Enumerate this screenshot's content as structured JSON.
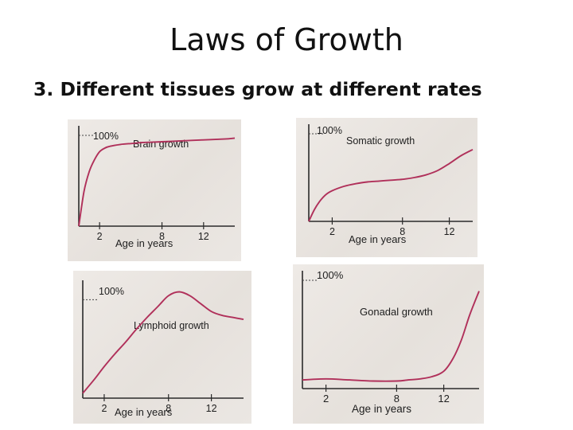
{
  "slide": {
    "title": "Laws of Growth",
    "subtitle": "3. Different tissues grow at different rates"
  },
  "colors": {
    "curve": "#b0305a",
    "axis": "#2a2a2a"
  },
  "chart_data": [
    {
      "type": "line",
      "title": "Brain growth",
      "ylabel": "",
      "xlabel": "Age in years",
      "ymax_label": "100%",
      "xticks": [
        2,
        8,
        12
      ],
      "xlim": [
        0,
        15
      ],
      "ylim": [
        0,
        100
      ],
      "series": [
        {
          "x": [
            0,
            0.5,
            1,
            1.5,
            2,
            2.5,
            3,
            4,
            5,
            6,
            8,
            10,
            12,
            14,
            15
          ],
          "y": [
            0,
            38,
            60,
            73,
            82,
            86,
            88,
            90,
            91,
            92,
            93,
            94,
            95,
            96,
            97
          ]
        }
      ]
    },
    {
      "type": "line",
      "title": "Somatic growth",
      "xlabel": "Age in years",
      "ymax_label": "100%",
      "xticks": [
        2,
        8,
        12
      ],
      "xlim": [
        0,
        14
      ],
      "ylim": [
        0,
        100
      ],
      "series": [
        {
          "x": [
            0,
            0.5,
            1,
            1.5,
            2,
            3,
            4,
            5,
            6,
            7,
            8,
            9,
            10,
            11,
            12,
            13,
            14
          ],
          "y": [
            0,
            14,
            24,
            31,
            35,
            40,
            43,
            45,
            46,
            47,
            48,
            50,
            53,
            58,
            66,
            75,
            82
          ]
        }
      ]
    },
    {
      "type": "line",
      "title": "Lymphoid growth",
      "xlabel": "Age in years",
      "ymax_label": "100%",
      "xticks": [
        2,
        8,
        12
      ],
      "xlim": [
        0,
        15
      ],
      "ylim": [
        0,
        110
      ],
      "series": [
        {
          "x": [
            0,
            1,
            2,
            3,
            4,
            5,
            6,
            7,
            8,
            9,
            10,
            11,
            12,
            13,
            14,
            15
          ],
          "y": [
            5,
            18,
            32,
            45,
            57,
            70,
            82,
            93,
            104,
            108,
            104,
            96,
            88,
            84,
            82,
            80
          ]
        }
      ]
    },
    {
      "type": "line",
      "title": "Gonadal growth",
      "xlabel": "Age in years",
      "ymax_label": "100%",
      "xticks": [
        2,
        8,
        12
      ],
      "xlim": [
        0,
        15
      ],
      "ylim": [
        0,
        100
      ],
      "series": [
        {
          "x": [
            0,
            2,
            4,
            6,
            8,
            9,
            10,
            11,
            12,
            12.8,
            13.5,
            14.2,
            15
          ],
          "y": [
            8,
            9,
            8,
            7,
            7,
            8,
            9,
            11,
            16,
            28,
            45,
            68,
            90
          ]
        }
      ]
    }
  ]
}
